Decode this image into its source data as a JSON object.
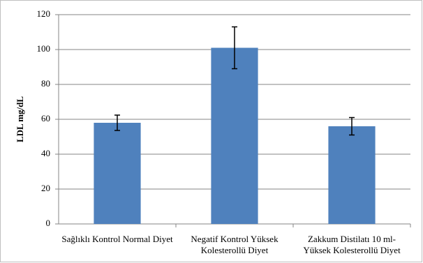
{
  "chart_data": {
    "type": "bar",
    "y_label": "LDL mg/dL",
    "categories": [
      "Sağlıklı Kontrol Normal Diyet",
      "Negatif Kontrol Yüksek Kolesterollü Diyet",
      "Zakkum Distilatı 10 ml-Yüksek Kolesterollü Diyet"
    ],
    "values": [
      58,
      101,
      56
    ],
    "errors": [
      4.4,
      12,
      5
    ],
    "color": "#4f81bd",
    "ylim": [
      0,
      120
    ],
    "yticks": [
      0,
      20,
      40,
      60,
      80,
      100,
      120
    ],
    "grid": true
  }
}
